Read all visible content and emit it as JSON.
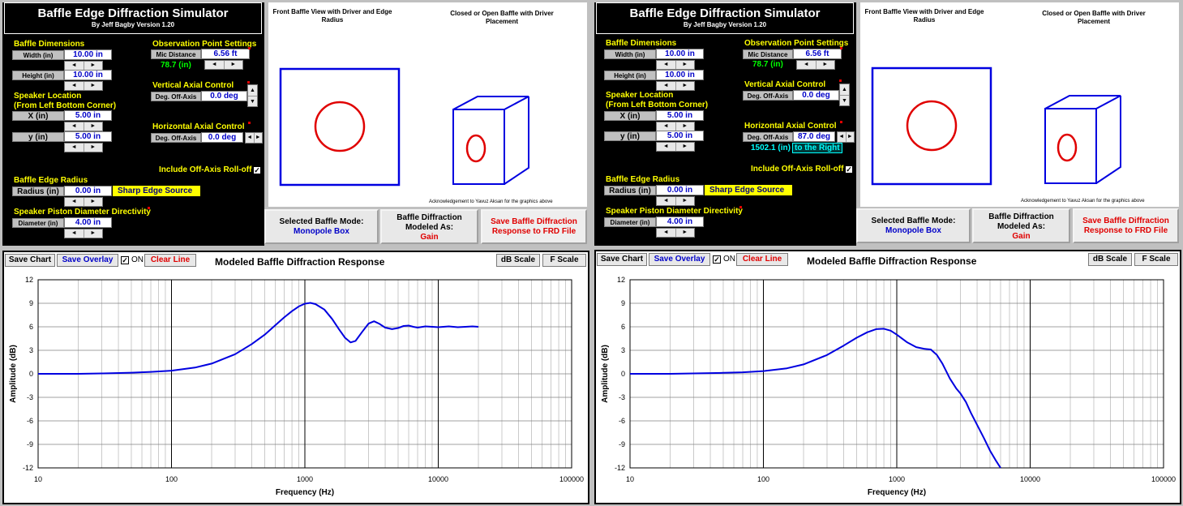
{
  "panels": [
    {
      "title": "Baffle Edge Diffraction Simulator",
      "subtitle": "By Jeff Bagby Version 1.20",
      "baffle_dimensions": {
        "header": "Baffle Dimensions",
        "width_label": "Width (in)",
        "width_value": "10.00 in",
        "height_label": "Height (in)",
        "height_value": "10.00 in"
      },
      "speaker_location": {
        "header_line1": "Speaker Location",
        "header_line2": "(From Left Bottom Corner)",
        "x_label": "X (in)",
        "x_value": "5.00 in",
        "y_label": "y (in)",
        "y_value": "5.00 in"
      },
      "observation": {
        "header": "Observation Point Settings",
        "mic_label": "Mic Distance",
        "mic_value": "6.56 ft",
        "mic_inches": "78.7 (in)"
      },
      "vertical": {
        "header": "Vertical Axial Control",
        "label": "Deg. Off-Axis",
        "value": "0.0 deg"
      },
      "horizontal": {
        "header": "Horizontal Axial Control",
        "label": "Deg. Off-Axis",
        "value": "0.0 deg",
        "offset_value": "",
        "offset_dir": ""
      },
      "rolloff": {
        "label": "Include Off-Axis Roll-off",
        "checked": "✓"
      },
      "edge_radius": {
        "header": "Baffle Edge Radius",
        "label": "Radius (in)",
        "value": "0.00 in",
        "source": "Sharp Edge Source"
      },
      "piston": {
        "header": "Speaker Piston Diameter Directivity",
        "label": "Diameter (in)",
        "value": "4.00 in"
      },
      "views": {
        "front_title": "Front Baffle View with Driver and Edge Radius",
        "box_title": "Closed or Open Baffle with Driver Placement",
        "ack": "Acknowledgement to Yavuz Aksan for the graphics above"
      },
      "mode": {
        "label": "Selected Baffle Mode:",
        "value": "Monopole Box"
      },
      "modeled": {
        "label1": "Baffle Diffraction",
        "label2": "Modeled As:",
        "value": "Gain"
      },
      "save_frd": {
        "line1": "Save Baffle Diffraction",
        "line2": "Response to FRD File"
      },
      "chart_toolbar": {
        "save_chart": "Save Chart",
        "save_overlay": "Save Overlay",
        "on_check": "✓",
        "on_label": "ON",
        "clear_line": "Clear Line",
        "title": "Modeled Baffle Diffraction Response",
        "db_scale": "dB Scale",
        "f_scale": "F Scale"
      }
    },
    {
      "title": "Baffle Edge Diffraction Simulator",
      "subtitle": "By Jeff Bagby Version 1.20",
      "baffle_dimensions": {
        "header": "Baffle Dimensions",
        "width_label": "Width (in)",
        "width_value": "10.00 in",
        "height_label": "Height (in)",
        "height_value": "10.00 in"
      },
      "speaker_location": {
        "header_line1": "Speaker Location",
        "header_line2": "(From Left Bottom Corner)",
        "x_label": "X (in)",
        "x_value": "5.00 in",
        "y_label": "y (in)",
        "y_value": "5.00 in"
      },
      "observation": {
        "header": "Observation Point Settings",
        "mic_label": "Mic Distance",
        "mic_value": "6.56 ft",
        "mic_inches": "78.7 (in)"
      },
      "vertical": {
        "header": "Vertical Axial Control",
        "label": "Deg. Off-Axis",
        "value": "0.0 deg"
      },
      "horizontal": {
        "header": "Horizontal Axial Control",
        "label": "Deg. Off-Axis",
        "value": "87.0 deg",
        "offset_value": "1502.1 (in)",
        "offset_dir": "to the Right"
      },
      "rolloff": {
        "label": "Include Off-Axis Roll-off",
        "checked": "✓"
      },
      "edge_radius": {
        "header": "Baffle Edge Radius",
        "label": "Radius (in)",
        "value": "0.00 in",
        "source": "Sharp Edge Source"
      },
      "piston": {
        "header": "Speaker Piston Diameter Directivity",
        "label": "Diameter (in)",
        "value": "4.00 in"
      },
      "views": {
        "front_title": "Front Baffle View with Driver and Edge Radius",
        "box_title": "Closed or Open Baffle with Driver Placement",
        "ack": "Acknowledgement to Yavuz Aksan for the graphics above"
      },
      "mode": {
        "label": "Selected Baffle Mode:",
        "value": "Monopole Box"
      },
      "modeled": {
        "label1": "Baffle Diffraction",
        "label2": "Modeled As:",
        "value": "Gain"
      },
      "save_frd": {
        "line1": "Save Baffle Diffraction",
        "line2": "Response to FRD File"
      },
      "chart_toolbar": {
        "save_chart": "Save Chart",
        "save_overlay": "Save Overlay",
        "on_check": "✓",
        "on_label": "ON",
        "clear_line": "Clear Line",
        "title": "Modeled Baffle Diffraction Response",
        "db_scale": "dB Scale",
        "f_scale": "F Scale"
      }
    }
  ],
  "chart_data": [
    {
      "type": "line",
      "xlabel": "Frequency (Hz)",
      "ylabel": "Amplitude (dB)",
      "x_scale": "log",
      "xlim": [
        10,
        100000
      ],
      "ylim": [
        -12,
        12
      ],
      "x_ticks": [
        "10",
        "100",
        "1000",
        "10000",
        "100000"
      ],
      "y_ticks": [
        "12",
        "9",
        "6",
        "3",
        "0",
        "-3",
        "-6",
        "-9",
        "-12"
      ],
      "grid": true,
      "color": "#0000e0",
      "series": [
        {
          "x": [
            10,
            20,
            30,
            50,
            70,
            100,
            150,
            200,
            300,
            400,
            500,
            600,
            700,
            800,
            900,
            1000,
            1100,
            1200,
            1400,
            1600,
            1800,
            2000,
            2200,
            2400,
            2700,
            3000,
            3300,
            3600,
            4000,
            4500,
            5000,
            5500,
            6000,
            6500,
            7000,
            8000,
            9000,
            10000,
            12000,
            14000,
            16000,
            18000,
            20000
          ],
          "y": [
            0.0,
            0.0,
            0.05,
            0.15,
            0.25,
            0.4,
            0.8,
            1.3,
            2.5,
            3.8,
            5.0,
            6.2,
            7.2,
            8.0,
            8.6,
            8.95,
            9.05,
            8.9,
            8.2,
            7.0,
            5.7,
            4.6,
            4.0,
            4.2,
            5.4,
            6.4,
            6.7,
            6.4,
            5.9,
            5.7,
            5.85,
            6.1,
            6.15,
            6.0,
            5.9,
            6.05,
            6.0,
            5.95,
            6.05,
            5.95,
            6.0,
            6.05,
            6.0
          ]
        }
      ]
    },
    {
      "type": "line",
      "xlabel": "Frequency (Hz)",
      "ylabel": "Amplitude (dB)",
      "x_scale": "log",
      "xlim": [
        10,
        100000
      ],
      "ylim": [
        -12,
        12
      ],
      "x_ticks": [
        "10",
        "100",
        "1000",
        "10000",
        "100000"
      ],
      "y_ticks": [
        "12",
        "9",
        "6",
        "3",
        "0",
        "-3",
        "-6",
        "-9",
        "-12"
      ],
      "grid": true,
      "color": "#0000e0",
      "series": [
        {
          "x": [
            10,
            20,
            30,
            50,
            70,
            100,
            150,
            200,
            300,
            400,
            500,
            600,
            700,
            800,
            900,
            1000,
            1200,
            1400,
            1600,
            1800,
            2000,
            2200,
            2500,
            2800,
            3000,
            3300,
            3600,
            4000,
            4500,
            5000,
            5500,
            6000
          ],
          "y": [
            0.0,
            0.0,
            0.05,
            0.12,
            0.2,
            0.35,
            0.7,
            1.2,
            2.4,
            3.6,
            4.6,
            5.3,
            5.7,
            5.75,
            5.5,
            5.0,
            4.0,
            3.4,
            3.2,
            3.1,
            2.4,
            1.3,
            -0.6,
            -1.9,
            -2.5,
            -3.6,
            -5.0,
            -6.5,
            -8.2,
            -9.8,
            -11.0,
            -12.0
          ]
        }
      ]
    }
  ]
}
